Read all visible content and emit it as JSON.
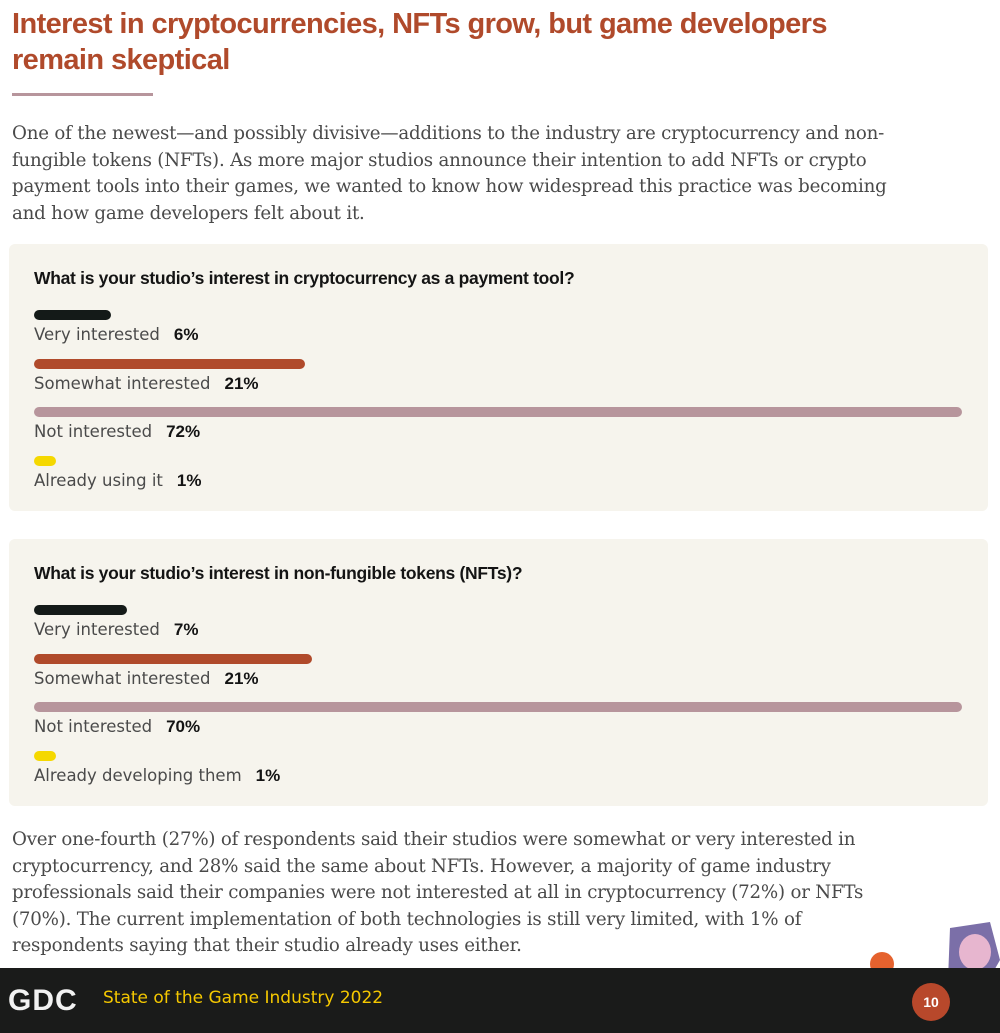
{
  "headline": "Interest in cryptocurrencies, NFTs grow, but game developers remain skeptical",
  "intro": "One of the newest—and possibly divisive—additions to the industry are cryptocurrency and non-fungible tokens (NFTs). As more major studios announce their intention to add NFTs or crypto payment tools into their games, we wanted to know how widespread this practice was becoming and how game developers felt about it.",
  "outro": "Over one-fourth (27%) of respondents said their studios were somewhat or very interested in cryptocurrency, and 28% said the same about NFTs. However, a majority of game industry professionals said their companies were not interested at all in cryptocurrency (72%) or NFTs (70%). The current implementation of both technologies is still very limited, with 1% of respondents saying that their studio already uses either.",
  "footer": {
    "logo": "GDC",
    "title": "State of the Game Industry 2022",
    "page": "10"
  },
  "colors": {
    "very": "#141a18",
    "somewhat": "#b04a2b",
    "not": "#b7959c",
    "already": "#f5d800"
  },
  "chart_data": [
    {
      "type": "bar",
      "title": "What is your studio’s interest in cryptocurrency as a payment tool?",
      "categories": [
        "Very interested",
        "Somewhat interested",
        "Not interested",
        "Already using it"
      ],
      "values": [
        6,
        21,
        72,
        1
      ],
      "value_labels": [
        "6%",
        "21%",
        "72%",
        "1%"
      ],
      "xlim": [
        0,
        72
      ]
    },
    {
      "type": "bar",
      "title": "What is your studio’s interest in non-fungible tokens (NFTs)?",
      "categories": [
        "Very interested",
        "Somewhat interested",
        "Not interested",
        "Already developing them"
      ],
      "values": [
        7,
        21,
        70,
        1
      ],
      "value_labels": [
        "7%",
        "21%",
        "70%",
        "1%"
      ],
      "xlim": [
        0,
        70
      ]
    }
  ]
}
